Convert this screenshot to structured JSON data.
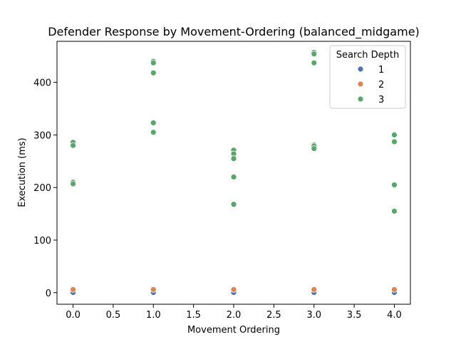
{
  "chart_data": {
    "type": "scatter",
    "title": "Defender Response by Movement-Ordering (balanced_midgame)",
    "xlabel": "Movement Ordering",
    "ylabel": "Execution (ms)",
    "xlim": [
      -0.2,
      4.2
    ],
    "ylim": [
      -22,
      478
    ],
    "xticks": [
      0.0,
      0.5,
      1.0,
      1.5,
      2.0,
      2.5,
      3.0,
      3.5,
      4.0
    ],
    "xtick_labels": [
      "0.0",
      "0.5",
      "1.0",
      "1.5",
      "2.0",
      "2.5",
      "3.0",
      "3.5",
      "4.0"
    ],
    "yticks": [
      0,
      100,
      200,
      300,
      400
    ],
    "ytick_labels": [
      "0",
      "100",
      "200",
      "300",
      "400"
    ],
    "grid": false,
    "legend": {
      "title": "Search Depth",
      "placement": "top-right"
    },
    "series": [
      {
        "name": "1",
        "color": "#4c72b0",
        "points": [
          [
            0,
            0.4
          ],
          [
            1,
            0.4
          ],
          [
            2,
            0.4
          ],
          [
            3,
            0.4
          ],
          [
            4,
            0.4
          ]
        ]
      },
      {
        "name": "2",
        "color": "#dd8452",
        "points": [
          [
            0,
            6
          ],
          [
            1,
            6
          ],
          [
            2,
            6
          ],
          [
            3,
            6
          ],
          [
            4,
            6
          ]
        ]
      },
      {
        "name": "3",
        "color": "#55a868",
        "points": [
          [
            0,
            286
          ],
          [
            0,
            280
          ],
          [
            0,
            210
          ],
          [
            0,
            207
          ],
          [
            1,
            440
          ],
          [
            1,
            437
          ],
          [
            1,
            418
          ],
          [
            1,
            323
          ],
          [
            1,
            305
          ],
          [
            2,
            271
          ],
          [
            2,
            264
          ],
          [
            2,
            255
          ],
          [
            2,
            220
          ],
          [
            2,
            168
          ],
          [
            3,
            457
          ],
          [
            3,
            454
          ],
          [
            3,
            437
          ],
          [
            3,
            281
          ],
          [
            3,
            279
          ],
          [
            3,
            274
          ],
          [
            4,
            301
          ],
          [
            4,
            300
          ],
          [
            4,
            287
          ],
          [
            4,
            205
          ],
          [
            4,
            155
          ]
        ]
      }
    ]
  }
}
